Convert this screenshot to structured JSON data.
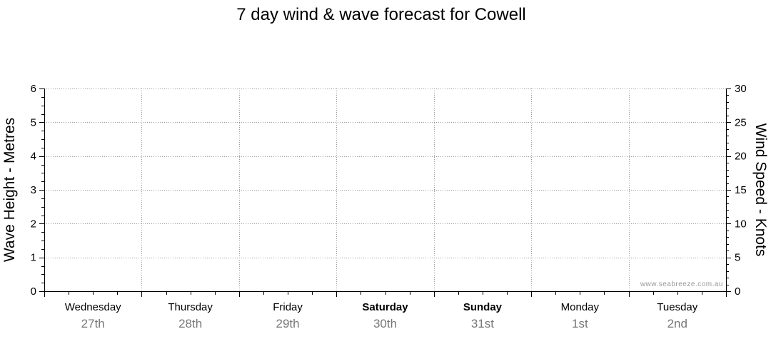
{
  "chart_data": {
    "type": "line",
    "title": "7 day wind & wave forecast for Cowell",
    "ylabel": "Wave Height - Metres",
    "y2label": "Wind Speed - Knots",
    "ylim": [
      0,
      6
    ],
    "y2lim": [
      0,
      30
    ],
    "yticks": [
      0,
      1,
      2,
      3,
      4,
      5,
      6
    ],
    "y2ticks": [
      0,
      5,
      10,
      15,
      20,
      25,
      30
    ],
    "grid": true,
    "days": [
      {
        "name": "Wednesday",
        "date": "27th",
        "bold": false
      },
      {
        "name": "Thursday",
        "date": "28th",
        "bold": false
      },
      {
        "name": "Friday",
        "date": "29th",
        "bold": false
      },
      {
        "name": "Saturday",
        "date": "30th",
        "bold": true
      },
      {
        "name": "Sunday",
        "date": "31st",
        "bold": true
      },
      {
        "name": "Monday",
        "date": "1st",
        "bold": false
      },
      {
        "name": "Tuesday",
        "date": "2nd",
        "bold": false
      }
    ],
    "series": []
  },
  "watermark": "www.seabreeze.com.au",
  "colors": {
    "grid": "#999999",
    "date_text": "#777777",
    "watermark": "#999999"
  }
}
